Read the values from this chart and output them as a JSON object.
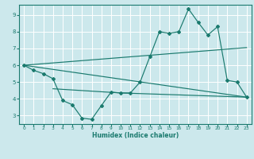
{
  "bg_color": "#cce8ec",
  "grid_color": "#ffffff",
  "line_color": "#1a7a6e",
  "xlabel": "Humidex (Indice chaleur)",
  "xlim": [
    -0.5,
    23.5
  ],
  "ylim": [
    2.5,
    9.6
  ],
  "xticks": [
    0,
    1,
    2,
    3,
    4,
    5,
    6,
    7,
    8,
    9,
    10,
    11,
    12,
    13,
    14,
    15,
    16,
    17,
    18,
    19,
    20,
    21,
    22,
    23
  ],
  "yticks": [
    3,
    4,
    5,
    6,
    7,
    8,
    9
  ],
  "line1_x": [
    0,
    1,
    2,
    3,
    4,
    5,
    6,
    7,
    8,
    9,
    10,
    11,
    12,
    13,
    14,
    15,
    16,
    17,
    18,
    19,
    20,
    21,
    22,
    23
  ],
  "line1_y": [
    6.0,
    5.7,
    5.5,
    5.2,
    3.9,
    3.65,
    2.85,
    2.78,
    3.6,
    4.4,
    4.35,
    4.35,
    5.0,
    6.5,
    8.0,
    7.9,
    8.0,
    9.35,
    8.55,
    7.8,
    8.3,
    5.1,
    5.0,
    4.1
  ],
  "line2_x": [
    0,
    23
  ],
  "line2_y": [
    6.0,
    7.05
  ],
  "line3_x": [
    0,
    23
  ],
  "line3_y": [
    6.0,
    4.1
  ],
  "line4_x": [
    3,
    10,
    23
  ],
  "line4_y": [
    4.6,
    4.35,
    4.1
  ]
}
